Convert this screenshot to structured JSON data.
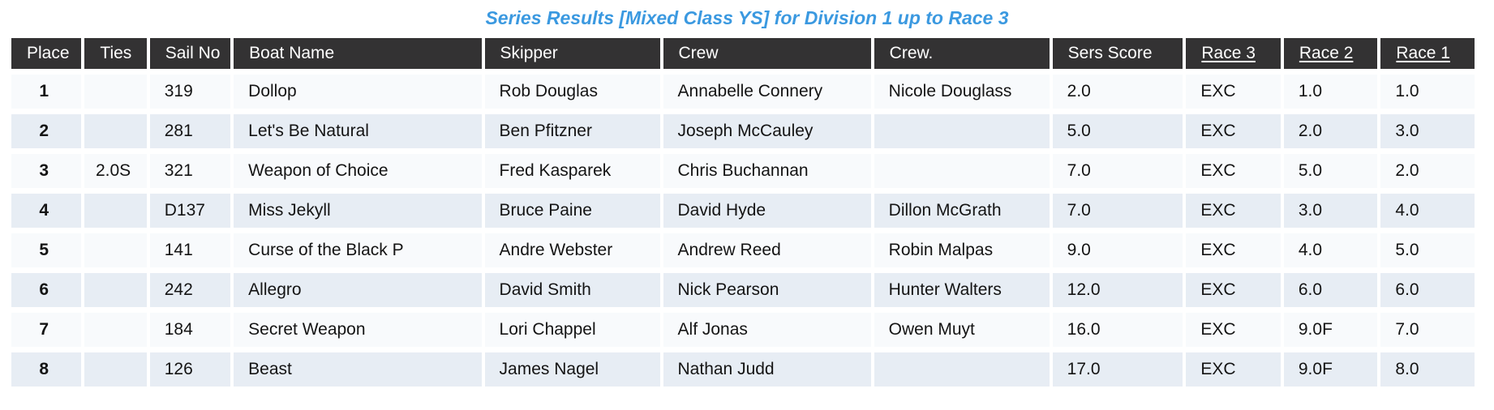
{
  "title": "Series Results [Mixed Class YS] for Division 1 up to Race 3",
  "colors": {
    "title_blue": "#3b99e0",
    "header_bg": "#333233",
    "row_odd": "#f8fafc",
    "row_even": "#e7edf4"
  },
  "table": {
    "columns": [
      {
        "key": "place",
        "label": "Place",
        "link": false
      },
      {
        "key": "ties",
        "label": "Ties",
        "link": false
      },
      {
        "key": "sail-no",
        "label": "Sail No",
        "link": false
      },
      {
        "key": "boat-name",
        "label": "Boat Name",
        "link": false
      },
      {
        "key": "skipper",
        "label": "Skipper",
        "link": false
      },
      {
        "key": "crew",
        "label": "Crew",
        "link": false
      },
      {
        "key": "crew2",
        "label": "Crew.",
        "link": false
      },
      {
        "key": "sers-score",
        "label": "Sers Score",
        "link": false
      },
      {
        "key": "race-3",
        "label": "Race 3",
        "link": true
      },
      {
        "key": "race-2",
        "label": "Race 2",
        "link": true
      },
      {
        "key": "race-1",
        "label": "Race 1",
        "link": true
      }
    ],
    "rows": [
      [
        "1",
        "",
        "319",
        "Dollop",
        "Rob Douglas",
        "Annabelle Connery",
        "Nicole Douglass",
        "2.0",
        "EXC",
        "1.0",
        "1.0"
      ],
      [
        "2",
        "",
        "281",
        "Let's Be Natural",
        "Ben Pfitzner",
        "Joseph McCauley",
        "",
        "5.0",
        "EXC",
        "2.0",
        "3.0"
      ],
      [
        "3",
        "2.0S",
        "321",
        "Weapon of Choice",
        "Fred Kasparek",
        "Chris Buchannan",
        "",
        "7.0",
        "EXC",
        "5.0",
        "2.0"
      ],
      [
        "4",
        "",
        "D137",
        "Miss Jekyll",
        "Bruce Paine",
        "David Hyde",
        "Dillon McGrath",
        "7.0",
        "EXC",
        "3.0",
        "4.0"
      ],
      [
        "5",
        "",
        "141",
        "Curse of the Black P",
        "Andre Webster",
        "Andrew Reed",
        "Robin Malpas",
        "9.0",
        "EXC",
        "4.0",
        "5.0"
      ],
      [
        "6",
        "",
        "242",
        "Allegro",
        "David Smith",
        "Nick Pearson",
        "Hunter Walters",
        "12.0",
        "EXC",
        "6.0",
        "6.0"
      ],
      [
        "7",
        "",
        "184",
        "Secret Weapon",
        "Lori Chappel",
        "Alf Jonas",
        "Owen Muyt",
        "16.0",
        "EXC",
        "9.0F",
        "7.0"
      ],
      [
        "8",
        "",
        "126",
        "Beast",
        "James Nagel",
        "Nathan Judd",
        "",
        "17.0",
        "EXC",
        "9.0F",
        "8.0"
      ]
    ]
  }
}
